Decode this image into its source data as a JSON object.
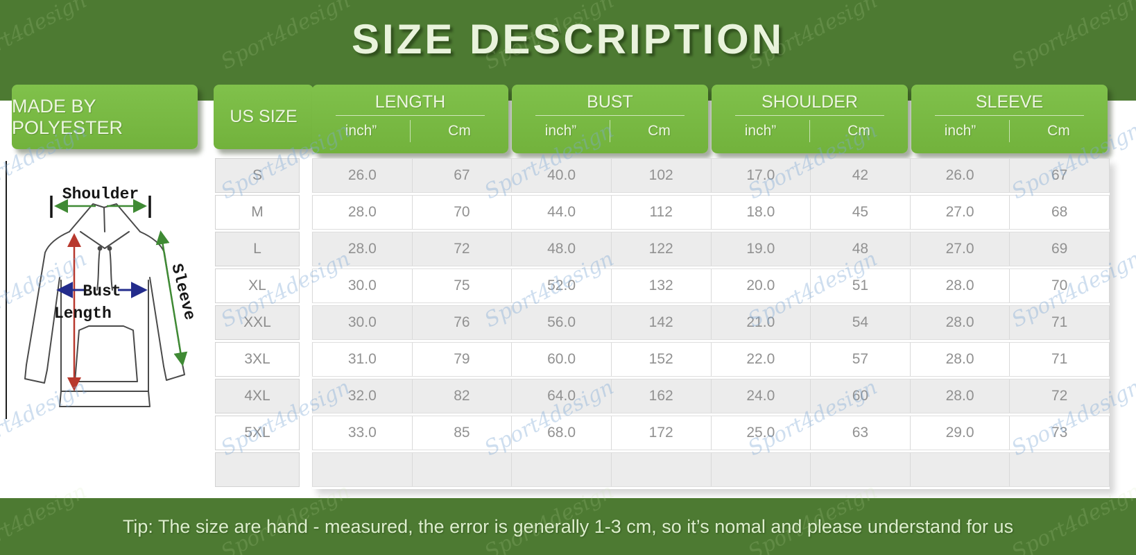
{
  "title": "SIZE DESCRIPTION",
  "material_label": "MADE BY POLYESTER",
  "tip": "Tip: The size are hand - measured, the error is generally 1-3 cm, so it’s nomal and please understand for us",
  "watermark": "Sport4design",
  "diagram": {
    "shoulder_label": "Shoulder",
    "bust_label": "Bust",
    "length_label": "Length",
    "sleeve_label": "Sleeve"
  },
  "table_headers": {
    "us_size": "US SIZE",
    "measurements": [
      "LENGTH",
      "BUST",
      "SHOULDER",
      "SLEEVE"
    ],
    "unit_inch": "inch”",
    "unit_cm": "Cm"
  },
  "chart_data": {
    "type": "table",
    "title": "SIZE DESCRIPTION",
    "columns": [
      "US SIZE",
      "LENGTH inch",
      "LENGTH Cm",
      "BUST inch",
      "BUST Cm",
      "SHOULDER inch",
      "SHOULDER Cm",
      "SLEEVE inch",
      "SLEEVE Cm"
    ],
    "rows": [
      [
        "S",
        "26.0",
        "67",
        "40.0",
        "102",
        "17.0",
        "42",
        "26.0",
        "67"
      ],
      [
        "M",
        "28.0",
        "70",
        "44.0",
        "112",
        "18.0",
        "45",
        "27.0",
        "68"
      ],
      [
        "L",
        "28.0",
        "72",
        "48.0",
        "122",
        "19.0",
        "48",
        "27.0",
        "69"
      ],
      [
        "XL",
        "30.0",
        "75",
        "52.0",
        "132",
        "20.0",
        "51",
        "28.0",
        "70"
      ],
      [
        "XXL",
        "30.0",
        "76",
        "56.0",
        "142",
        "21.0",
        "54",
        "28.0",
        "71"
      ],
      [
        "3XL",
        "31.0",
        "79",
        "60.0",
        "152",
        "22.0",
        "57",
        "28.0",
        "71"
      ],
      [
        "4XL",
        "32.0",
        "82",
        "64.0",
        "162",
        "24.0",
        "60",
        "28.0",
        "72"
      ],
      [
        "5XL",
        "33.0",
        "85",
        "68.0",
        "172",
        "25.0",
        "63",
        "29.0",
        "73"
      ]
    ]
  },
  "colors": {
    "band_green": "#4d7a32",
    "box_green": "#79b843",
    "row_grey": "#ececec",
    "pale_text": "#edf6e1",
    "cell_text": "#919191",
    "arrow_green": "#3f8a34",
    "arrow_navy": "#232c8c",
    "arrow_red": "#b8392e",
    "watermark_blue": "#7da9d7"
  }
}
